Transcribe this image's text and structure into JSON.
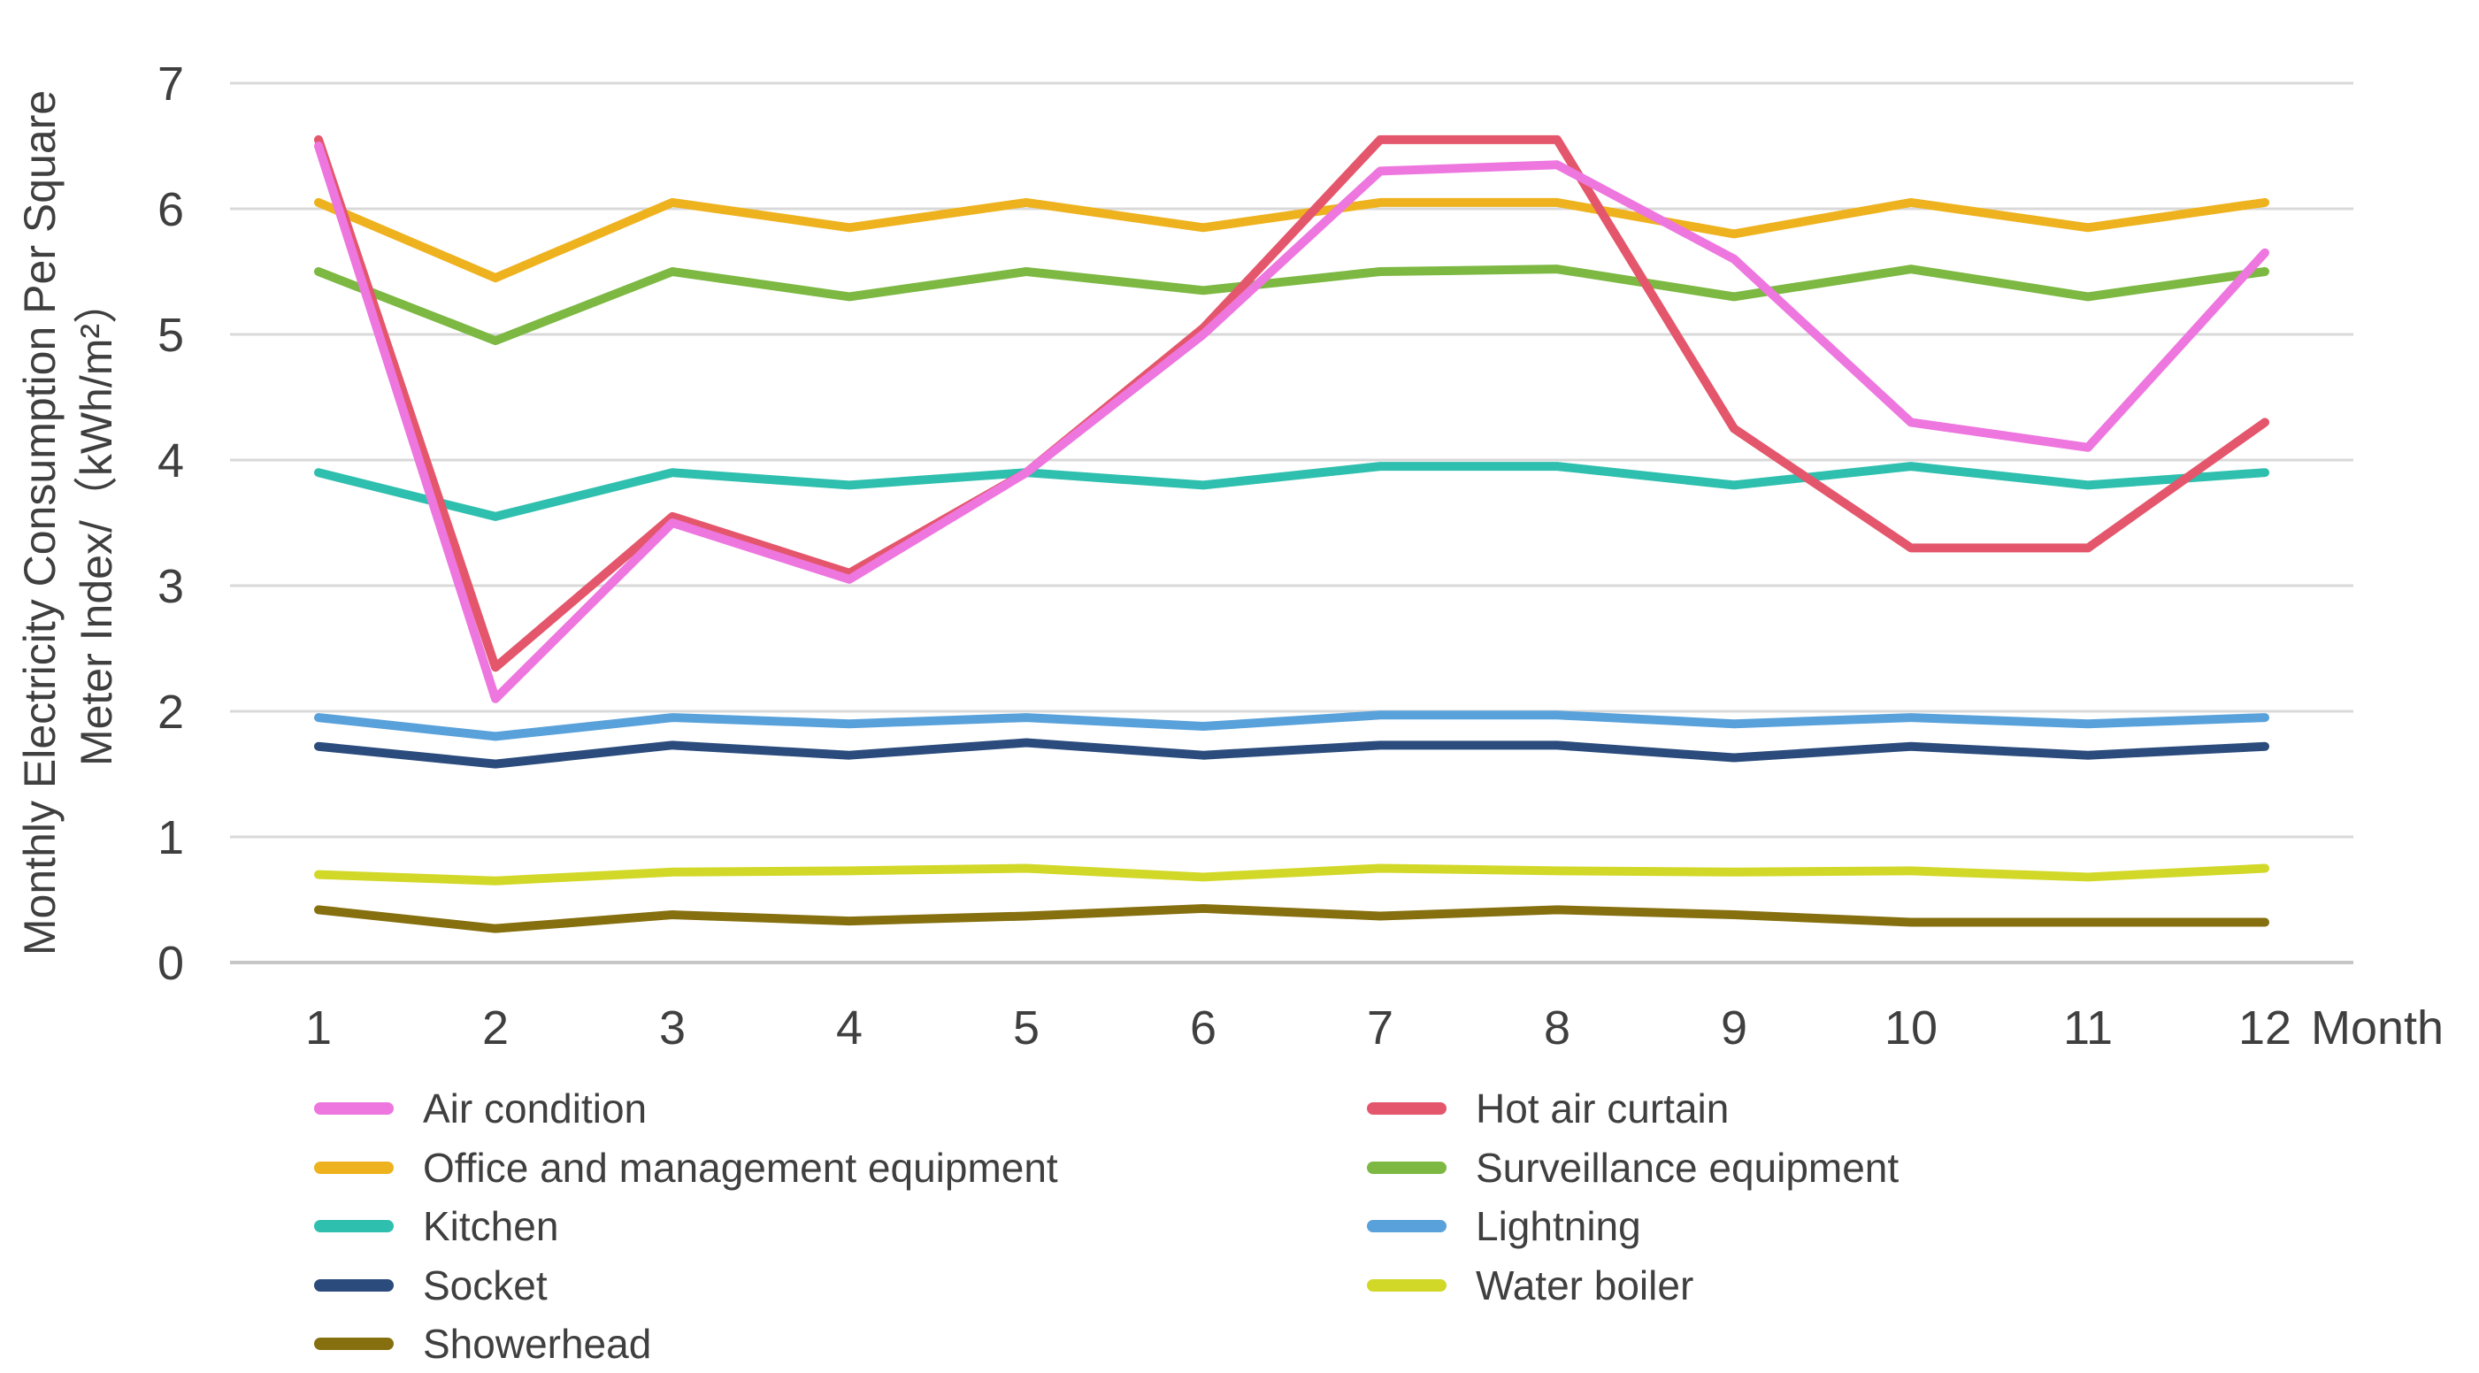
{
  "colors": {
    "grid": "#d9d9d9",
    "baseline": "#c6c6c6",
    "text": "#3f3f3f",
    "background": "#ffffff"
  },
  "chart_data": {
    "type": "line",
    "title": "",
    "x_label": "Month",
    "y_label_lines": [
      "Monthly Electricity Consumption Per Square",
      "Meter Index/（kWh/m²）"
    ],
    "x": [
      1,
      2,
      3,
      4,
      5,
      6,
      7,
      8,
      9,
      10,
      11,
      12
    ],
    "yticks": [
      0,
      1,
      2,
      3,
      4,
      5,
      6,
      7
    ],
    "ylim": [
      0,
      7
    ],
    "grid": true,
    "legend_position": "bottom",
    "series": [
      {
        "name": "Air condition",
        "color": "#ee76df",
        "values": [
          6.5,
          2.1,
          3.5,
          3.05,
          3.9,
          5.0,
          6.3,
          6.35,
          5.6,
          4.3,
          4.1,
          5.65
        ]
      },
      {
        "name": "Hot air curtain",
        "color": "#e4566b",
        "values": [
          6.55,
          2.35,
          3.55,
          3.1,
          3.9,
          5.05,
          6.55,
          6.55,
          4.25,
          3.3,
          3.3,
          4.3
        ]
      },
      {
        "name": "Office and management equipment",
        "color": "#eeb21e",
        "values": [
          6.05,
          5.45,
          6.05,
          5.85,
          6.05,
          5.85,
          6.05,
          6.05,
          5.8,
          6.05,
          5.85,
          6.05
        ]
      },
      {
        "name": "Surveillance equipment",
        "color": "#7cb842",
        "values": [
          5.5,
          4.95,
          5.5,
          5.3,
          5.5,
          5.35,
          5.5,
          5.52,
          5.3,
          5.52,
          5.3,
          5.5
        ]
      },
      {
        "name": "Kitchen",
        "color": "#2fbfae",
        "values": [
          3.9,
          3.55,
          3.9,
          3.8,
          3.9,
          3.8,
          3.95,
          3.95,
          3.8,
          3.95,
          3.8,
          3.9
        ]
      },
      {
        "name": "Lightning",
        "color": "#58a1da",
        "values": [
          1.95,
          1.8,
          1.95,
          1.9,
          1.95,
          1.88,
          1.97,
          1.97,
          1.9,
          1.95,
          1.9,
          1.95
        ]
      },
      {
        "name": "Socket",
        "color": "#2a4b7c",
        "values": [
          1.72,
          1.58,
          1.73,
          1.65,
          1.75,
          1.65,
          1.73,
          1.73,
          1.63,
          1.72,
          1.65,
          1.72
        ]
      },
      {
        "name": "Water boiler",
        "color": "#d2d827",
        "values": [
          0.7,
          0.65,
          0.72,
          0.73,
          0.75,
          0.68,
          0.75,
          0.73,
          0.72,
          0.73,
          0.68,
          0.75
        ]
      },
      {
        "name": "Showerhead",
        "color": "#866f0e",
        "values": [
          0.42,
          0.27,
          0.38,
          0.33,
          0.37,
          0.43,
          0.37,
          0.42,
          0.38,
          0.32,
          0.32,
          0.32
        ]
      }
    ],
    "draw_order": [
      7,
      8,
      6,
      5,
      2,
      3,
      4,
      1,
      0
    ],
    "legend_columns": [
      [
        0,
        2,
        4,
        6,
        8
      ],
      [
        1,
        3,
        5,
        7
      ]
    ]
  }
}
